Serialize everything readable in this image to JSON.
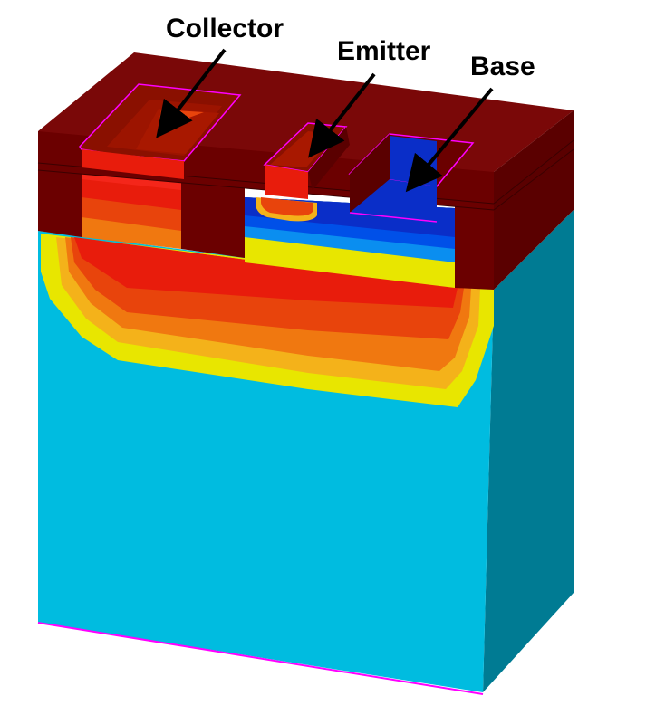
{
  "labels": {
    "collector": "Collector",
    "emitter": "Emitter",
    "base": "Base"
  },
  "colors": {
    "oxide": "#6b0000",
    "oxide_top": "#7a0808",
    "oxide_dark": "#4d0000",
    "substrate_front": "#00bce0",
    "substrate_side": "#007b93",
    "red": "#e81c0c",
    "orange_red": "#e8440c",
    "orange": "#f07810",
    "yellow_orange": "#f4b21a",
    "yellow": "#e8e600",
    "blue_base": "#0a2ec8",
    "blue_mid": "#0050e8",
    "blue_light": "#0a8ef0",
    "contact_outline": "#ff00ff"
  }
}
